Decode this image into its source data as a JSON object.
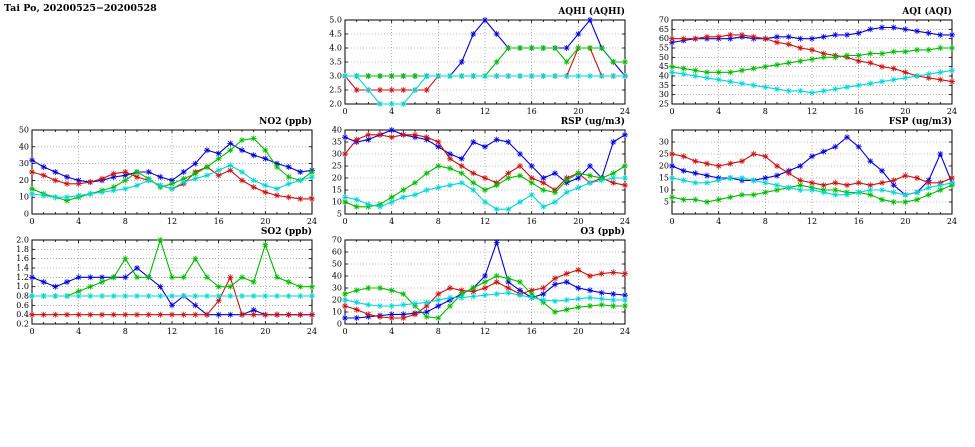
{
  "page_title": "Tai Po, 20200525−20200528",
  "colors": {
    "series_blue": "#0000dd",
    "series_red": "#cc1111",
    "series_green": "#00bb00",
    "series_cyan": "#00d5d5",
    "grid": "#808080",
    "axis": "#000000",
    "background": "#ffffff"
  },
  "chart_data": [
    {
      "id": "aqhi",
      "type": "line",
      "title": "AQHI (AQHI)",
      "xlabel": "",
      "ylabel": "",
      "xlim": [
        0,
        24
      ],
      "x_ticks": [
        0,
        4,
        8,
        12,
        16,
        20,
        24
      ],
      "x_minor_step": 1,
      "x_step_hours": 1,
      "ylim": [
        2,
        5
      ],
      "y_ticks": [
        2,
        2.5,
        3,
        3.5,
        4,
        4.5,
        5
      ],
      "y_decimals": 1,
      "series": [
        {
          "name": "blue",
          "color": "#0000dd",
          "values": [
            3,
            3,
            3,
            3,
            3,
            3,
            3,
            3,
            3,
            3,
            3.5,
            4.5,
            5,
            4.5,
            4,
            4,
            4,
            4,
            4,
            4,
            4.5,
            5,
            4,
            3.5,
            3
          ]
        },
        {
          "name": "red",
          "color": "#cc1111",
          "values": [
            3,
            2.5,
            2.5,
            2.5,
            2.5,
            2.5,
            2.5,
            2.5,
            3,
            3,
            3,
            3,
            3,
            3,
            3,
            3,
            3,
            3,
            3,
            3,
            4,
            4,
            3,
            3,
            3
          ]
        },
        {
          "name": "green",
          "color": "#00bb00",
          "values": [
            3,
            3,
            3,
            3,
            3,
            3,
            3,
            3,
            3,
            3,
            3,
            3,
            3,
            3.5,
            4,
            4,
            4,
            4,
            4,
            3.5,
            4,
            4,
            4,
            3.5,
            3.5
          ]
        },
        {
          "name": "cyan",
          "color": "#00d5d5",
          "values": [
            3,
            3,
            2.5,
            2,
            2,
            2,
            2.5,
            3,
            3,
            3,
            3,
            3,
            3,
            3,
            3,
            3,
            3,
            3,
            3,
            3,
            3,
            3,
            3,
            3,
            3
          ]
        }
      ]
    },
    {
      "id": "aqi",
      "type": "line",
      "title": "AQI (AQI)",
      "xlabel": "",
      "ylabel": "",
      "xlim": [
        0,
        24
      ],
      "x_ticks": [
        0,
        4,
        8,
        12,
        16,
        20,
        24
      ],
      "x_minor_step": 1,
      "x_step_hours": 1,
      "ylim": [
        25,
        70
      ],
      "y_ticks": [
        25,
        30,
        35,
        40,
        45,
        50,
        55,
        60,
        65,
        70
      ],
      "y_decimals": 0,
      "series": [
        {
          "name": "blue",
          "color": "#0000dd",
          "values": [
            58,
            59,
            60,
            60,
            60,
            60,
            61,
            60,
            60,
            61,
            61,
            60,
            60,
            61,
            62,
            62,
            63,
            65,
            66,
            66,
            65,
            64,
            63,
            62,
            62
          ]
        },
        {
          "name": "red",
          "color": "#cc1111",
          "values": [
            60,
            60,
            60,
            61,
            61,
            62,
            62,
            61,
            60,
            58,
            57,
            55,
            54,
            52,
            51,
            50,
            48,
            47,
            45,
            44,
            42,
            40,
            39,
            38,
            37
          ]
        },
        {
          "name": "green",
          "color": "#00bb00",
          "values": [
            45,
            44,
            43,
            42,
            42,
            42,
            43,
            44,
            45,
            46,
            47,
            48,
            49,
            50,
            50,
            51,
            51,
            52,
            52,
            53,
            53,
            54,
            54,
            55,
            55
          ]
        },
        {
          "name": "cyan",
          "color": "#00d5d5",
          "values": [
            42,
            41,
            40,
            39,
            38,
            37,
            36,
            35,
            34,
            33,
            32,
            32,
            31,
            32,
            33,
            34,
            35,
            36,
            37,
            38,
            39,
            40,
            41,
            42,
            43
          ]
        }
      ]
    },
    {
      "id": "no2",
      "type": "line",
      "title": "NO2 (ppb)",
      "xlabel": "",
      "ylabel": "",
      "xlim": [
        0,
        24
      ],
      "x_ticks": [
        0,
        4,
        8,
        12,
        16,
        20,
        24
      ],
      "x_minor_step": 1,
      "x_step_hours": 1,
      "ylim": [
        0,
        50
      ],
      "y_ticks": [
        0,
        10,
        20,
        30,
        40,
        50
      ],
      "y_decimals": 0,
      "series": [
        {
          "name": "blue",
          "color": "#0000dd",
          "values": [
            32,
            28,
            25,
            22,
            20,
            19,
            20,
            22,
            23,
            25,
            25,
            22,
            20,
            25,
            30,
            38,
            36,
            42,
            38,
            35,
            33,
            30,
            28,
            25,
            26
          ]
        },
        {
          "name": "red",
          "color": "#cc1111",
          "values": [
            25,
            23,
            20,
            18,
            18,
            19,
            21,
            24,
            25,
            22,
            20,
            17,
            15,
            18,
            25,
            28,
            23,
            26,
            20,
            16,
            13,
            11,
            10,
            9,
            9
          ]
        },
        {
          "name": "green",
          "color": "#00bb00",
          "values": [
            15,
            12,
            10,
            8,
            10,
            12,
            14,
            16,
            20,
            25,
            21,
            16,
            18,
            21,
            24,
            28,
            33,
            38,
            44,
            45,
            38,
            28,
            22,
            20,
            25
          ]
        },
        {
          "name": "cyan",
          "color": "#00d5d5",
          "values": [
            12,
            11,
            10,
            10,
            11,
            12,
            13,
            14,
            15,
            17,
            20,
            17,
            15,
            19,
            21,
            23,
            26,
            29,
            25,
            20,
            17,
            15,
            18,
            20,
            22
          ]
        }
      ]
    },
    {
      "id": "rsp",
      "type": "line",
      "title": "RSP (ug/m3)",
      "xlabel": "",
      "ylabel": "",
      "xlim": [
        0,
        24
      ],
      "x_ticks": [
        0,
        4,
        8,
        12,
        16,
        20,
        24
      ],
      "x_minor_step": 1,
      "x_step_hours": 1,
      "ylim": [
        5,
        40
      ],
      "y_ticks": [
        5,
        10,
        15,
        20,
        25,
        30,
        35,
        40
      ],
      "y_decimals": 0,
      "series": [
        {
          "name": "blue",
          "color": "#0000dd",
          "values": [
            37,
            35,
            36,
            38,
            40,
            38,
            37,
            36,
            33,
            30,
            28,
            35,
            33,
            36,
            35,
            30,
            25,
            20,
            22,
            18,
            20,
            25,
            20,
            35,
            38
          ]
        },
        {
          "name": "red",
          "color": "#cc1111",
          "values": [
            30,
            36,
            38,
            38,
            37,
            38,
            38,
            37,
            35,
            28,
            25,
            22,
            20,
            18,
            22,
            25,
            20,
            18,
            15,
            20,
            22,
            18,
            20,
            18,
            17
          ]
        },
        {
          "name": "green",
          "color": "#00bb00",
          "values": [
            10,
            8,
            8,
            9,
            12,
            15,
            18,
            22,
            25,
            24,
            22,
            18,
            15,
            17,
            20,
            21,
            18,
            15,
            14,
            19,
            22,
            21,
            20,
            22,
            25
          ]
        },
        {
          "name": "cyan",
          "color": "#00d5d5",
          "values": [
            12,
            11,
            9,
            8,
            10,
            12,
            13,
            15,
            16,
            17,
            18,
            15,
            10,
            7,
            7,
            10,
            13,
            8,
            10,
            14,
            16,
            18,
            19,
            20,
            20
          ]
        }
      ]
    },
    {
      "id": "fsp",
      "type": "line",
      "title": "FSP (ug/m3)",
      "xlabel": "",
      "ylabel": "",
      "xlim": [
        0,
        24
      ],
      "x_ticks": [
        0,
        4,
        8,
        12,
        16,
        20,
        24
      ],
      "x_minor_step": 1,
      "x_step_hours": 1,
      "ylim": [
        0,
        35
      ],
      "y_ticks": [
        5,
        10,
        15,
        20,
        25,
        30
      ],
      "y_decimals": 0,
      "series": [
        {
          "name": "blue",
          "color": "#0000dd",
          "values": [
            20,
            18,
            17,
            16,
            15,
            15,
            14,
            14,
            15,
            16,
            18,
            20,
            24,
            26,
            28,
            32,
            28,
            22,
            18,
            12,
            8,
            9,
            14,
            25,
            13
          ]
        },
        {
          "name": "red",
          "color": "#cc1111",
          "values": [
            25,
            24,
            22,
            21,
            20,
            21,
            22,
            25,
            24,
            20,
            17,
            14,
            13,
            12,
            13,
            12,
            13,
            12,
            13,
            14,
            16,
            15,
            13,
            13,
            15
          ]
        },
        {
          "name": "green",
          "color": "#00bb00",
          "values": [
            7,
            6,
            6,
            5,
            6,
            7,
            8,
            8,
            9,
            10,
            11,
            12,
            11,
            10,
            10,
            9,
            9,
            8,
            6,
            5,
            5,
            6,
            8,
            10,
            12
          ]
        },
        {
          "name": "cyan",
          "color": "#00d5d5",
          "values": [
            15,
            14,
            13,
            13,
            14,
            15,
            15,
            14,
            13,
            12,
            11,
            10,
            10,
            9,
            8,
            8,
            9,
            10,
            10,
            9,
            8,
            9,
            11,
            12,
            13
          ]
        }
      ]
    },
    {
      "id": "so2",
      "type": "line",
      "title": "SO2 (ppb)",
      "xlabel": "",
      "ylabel": "",
      "xlim": [
        0,
        24
      ],
      "x_ticks": [
        0,
        4,
        8,
        12,
        16,
        20,
        24
      ],
      "x_minor_step": 1,
      "x_step_hours": 1,
      "ylim": [
        0.2,
        2.0
      ],
      "y_ticks": [
        0.2,
        0.4,
        0.6,
        0.8,
        1.0,
        1.2,
        1.4,
        1.6,
        1.8,
        2.0
      ],
      "y_decimals": 1,
      "series": [
        {
          "name": "blue",
          "color": "#0000dd",
          "values": [
            1.2,
            1.1,
            1.0,
            1.1,
            1.2,
            1.2,
            1.2,
            1.2,
            1.2,
            1.4,
            1.2,
            1.0,
            0.6,
            0.8,
            0.6,
            0.4,
            0.4,
            0.4,
            0.4,
            0.5,
            0.4,
            0.4,
            0.4,
            0.4,
            0.4
          ]
        },
        {
          "name": "red",
          "color": "#cc1111",
          "values": [
            0.4,
            0.4,
            0.4,
            0.4,
            0.4,
            0.4,
            0.4,
            0.4,
            0.4,
            0.4,
            0.4,
            0.4,
            0.4,
            0.4,
            0.4,
            0.4,
            0.7,
            1.2,
            0.4,
            0.4,
            0.4,
            0.4,
            0.4,
            0.4,
            0.4
          ]
        },
        {
          "name": "green",
          "color": "#00bb00",
          "values": [
            0.8,
            0.8,
            0.8,
            0.8,
            0.9,
            1.0,
            1.1,
            1.2,
            1.6,
            1.2,
            1.2,
            2.0,
            1.2,
            1.2,
            1.6,
            1.2,
            1.0,
            1.0,
            1.2,
            1.1,
            1.9,
            1.2,
            1.1,
            1.0,
            1.0
          ]
        },
        {
          "name": "cyan",
          "color": "#00d5d5",
          "values": [
            0.8,
            0.8,
            0.8,
            0.8,
            0.8,
            0.8,
            0.8,
            0.8,
            0.8,
            0.8,
            0.8,
            0.8,
            0.8,
            0.8,
            0.8,
            0.8,
            0.8,
            0.8,
            0.8,
            0.8,
            0.8,
            0.8,
            0.8,
            0.8,
            0.8
          ]
        }
      ]
    },
    {
      "id": "o3",
      "type": "line",
      "title": "O3 (ppb)",
      "xlabel": "",
      "ylabel": "",
      "xlim": [
        0,
        24
      ],
      "x_ticks": [
        0,
        4,
        8,
        12,
        16,
        20,
        24
      ],
      "x_minor_step": 1,
      "x_step_hours": 1,
      "ylim": [
        0,
        70
      ],
      "y_ticks": [
        0,
        10,
        20,
        30,
        40,
        50,
        60,
        70
      ],
      "y_decimals": 0,
      "series": [
        {
          "name": "blue",
          "color": "#0000dd",
          "values": [
            5,
            5,
            6,
            7,
            8,
            8,
            9,
            10,
            15,
            20,
            25,
            30,
            40,
            68,
            35,
            28,
            22,
            25,
            33,
            35,
            30,
            28,
            26,
            25,
            24
          ]
        },
        {
          "name": "red",
          "color": "#cc1111",
          "values": [
            15,
            12,
            8,
            6,
            5,
            5,
            8,
            15,
            25,
            30,
            28,
            27,
            30,
            35,
            30,
            25,
            28,
            30,
            38,
            42,
            45,
            40,
            42,
            43,
            42
          ]
        },
        {
          "name": "green",
          "color": "#00bb00",
          "values": [
            25,
            28,
            30,
            30,
            28,
            25,
            15,
            6,
            5,
            15,
            25,
            30,
            35,
            40,
            38,
            35,
            25,
            18,
            10,
            12,
            14,
            15,
            16,
            15,
            15
          ]
        },
        {
          "name": "cyan",
          "color": "#00d5d5",
          "values": [
            20,
            18,
            16,
            15,
            15,
            16,
            17,
            18,
            20,
            22,
            22,
            23,
            24,
            25,
            26,
            24,
            22,
            20,
            19,
            20,
            21,
            22,
            21,
            20,
            20
          ]
        }
      ]
    }
  ]
}
